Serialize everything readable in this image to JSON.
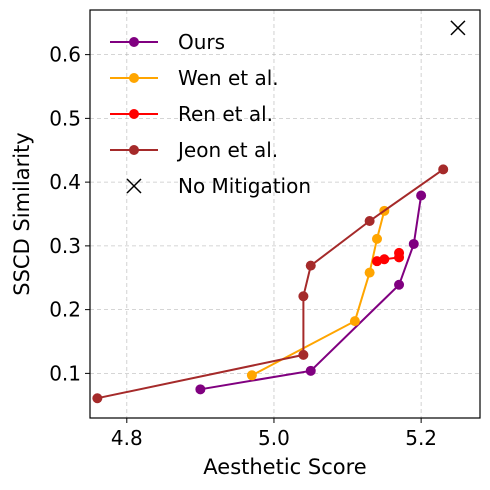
{
  "chart_data": {
    "type": "line",
    "xlabel": "Aesthetic Score",
    "ylabel": "SSCD Similarity",
    "xlim": [
      4.75,
      5.28
    ],
    "ylim": [
      0.03,
      0.67
    ],
    "xticks": [
      4.8,
      5.0,
      5.2
    ],
    "xtick_labels": [
      "4.8",
      "5.0",
      "5.2"
    ],
    "yticks": [
      0.1,
      0.2,
      0.3,
      0.4,
      0.5,
      0.6
    ],
    "ytick_labels": [
      "0.1",
      "0.2",
      "0.3",
      "0.4",
      "0.5",
      "0.6"
    ],
    "grid": true,
    "legend_position": "top-left",
    "series": [
      {
        "name": "Ours",
        "color": "#800080",
        "marker": "circle",
        "points": [
          [
            4.9,
            0.075
          ],
          [
            5.05,
            0.104
          ],
          [
            5.17,
            0.239
          ],
          [
            5.19,
            0.303
          ],
          [
            5.2,
            0.379
          ]
        ]
      },
      {
        "name": "Wen et al.",
        "color": "#FFA500",
        "marker": "circle",
        "points": [
          [
            4.97,
            0.097
          ],
          [
            5.11,
            0.182
          ],
          [
            5.13,
            0.258
          ],
          [
            5.14,
            0.311
          ],
          [
            5.15,
            0.355
          ]
        ]
      },
      {
        "name": "Ren et al.",
        "color": "#FF0000",
        "marker": "circle",
        "points": [
          [
            5.14,
            0.276
          ],
          [
            5.15,
            0.279
          ],
          [
            5.17,
            0.282
          ],
          [
            5.17,
            0.289
          ]
        ]
      },
      {
        "name": "Jeon et al.",
        "color": "#A52A2A",
        "marker": "circle",
        "points": [
          [
            4.76,
            0.061
          ],
          [
            5.04,
            0.129
          ],
          [
            5.04,
            0.221
          ],
          [
            5.05,
            0.269
          ],
          [
            5.13,
            0.339
          ],
          [
            5.23,
            0.42
          ]
        ]
      },
      {
        "name": "No Mitigation",
        "color": "#000000",
        "marker": "x",
        "points": [
          [
            5.25,
            0.642
          ]
        ]
      }
    ]
  }
}
